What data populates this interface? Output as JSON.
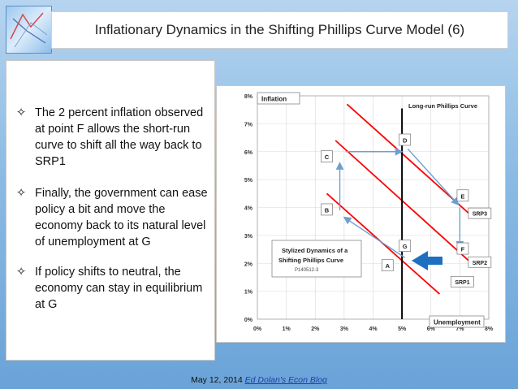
{
  "slide": {
    "title": "Inflationary Dynamics in the Shifting Phillips Curve Model (6)"
  },
  "bullets": [
    "The 2 percent inflation observed at point F allows the short-run curve to shift all the way back to SRP1",
    "Finally, the government can ease policy a bit and move the economy back to its natural level of unemployment at G",
    "If policy shifts to neutral, the economy can stay in equilibrium at G"
  ],
  "bullet_symbol": "✧",
  "footer": {
    "date": "May 12, 2014",
    "link_text": "Ed Dolan's Econ Blog"
  },
  "diagram": {
    "y_axis_label": "Inflation",
    "x_axis_label": "Unemployment",
    "lrpc_label": "Long-run Phillips Curve",
    "box_title": "Stylized Dynamics of a Shifting Phillips Curve",
    "box_code": "P140512-3",
    "y_ticks": [
      "0%",
      "1%",
      "2%",
      "3%",
      "4%",
      "5%",
      "6%",
      "7%",
      "8%"
    ],
    "x_ticks": [
      "0%",
      "1%",
      "2%",
      "3%",
      "4%",
      "5%",
      "6%",
      "7%",
      "8%"
    ],
    "colors": {
      "curve": "#ff0000",
      "lrpc": "#000000",
      "arrow": "#6f9fd0",
      "big_arrow": "#1f6fc0"
    },
    "points": [
      {
        "label": "A",
        "u": 4.5,
        "pi": 1.9
      },
      {
        "label": "B",
        "u": 2.4,
        "pi": 3.9
      },
      {
        "label": "C",
        "u": 2.4,
        "pi": 5.8
      },
      {
        "label": "D",
        "u": 5.1,
        "pi": 6.4
      },
      {
        "label": "E",
        "u": 7.1,
        "pi": 4.4
      },
      {
        "label": "F",
        "u": 7.1,
        "pi": 2.5
      },
      {
        "label": "G",
        "u": 5.1,
        "pi": 2.6
      }
    ],
    "curves": [
      {
        "label": "SRP1",
        "u1": 2.4,
        "pi1": 4.5,
        "u2": 6.3,
        "pi2": 0.9
      },
      {
        "label": "SRP2",
        "u1": 2.7,
        "pi1": 6.4,
        "u2": 7.3,
        "pi2": 2.1
      },
      {
        "label": "SRP3",
        "u1": 3.1,
        "pi1": 7.7,
        "u2": 7.3,
        "pi2": 3.8
      }
    ]
  }
}
